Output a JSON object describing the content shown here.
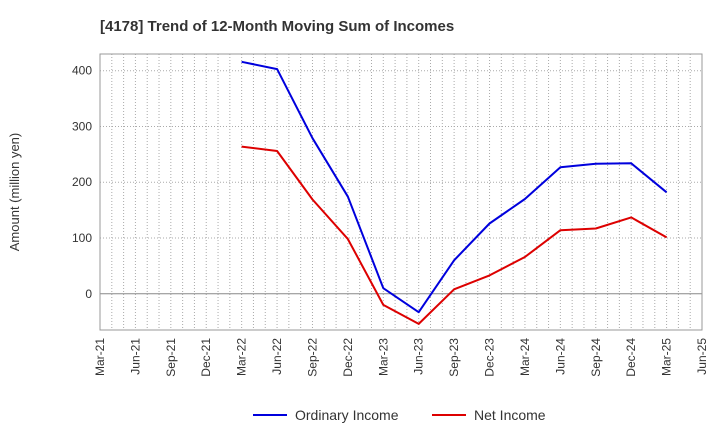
{
  "chart_data": {
    "type": "line",
    "title": "[4178]  Trend of 12-Month Moving Sum of Incomes",
    "xlabel": "",
    "ylabel": "Amount (million yen)",
    "ylim": [
      -65,
      430
    ],
    "yticks": [
      0,
      100,
      200,
      300,
      400
    ],
    "x_tick_labels": [
      "Mar-21",
      "Jun-21",
      "Sep-21",
      "Dec-21",
      "Mar-22",
      "Jun-22",
      "Sep-22",
      "Dec-22",
      "Mar-23",
      "Jun-23",
      "Sep-23",
      "Dec-23",
      "Mar-24",
      "Jun-24",
      "Sep-24",
      "Dec-24",
      "Mar-25",
      "Jun-25"
    ],
    "categories": [
      "Mar-22",
      "Jun-22",
      "Sep-22",
      "Dec-22",
      "Mar-23",
      "Jun-23",
      "Sep-23",
      "Dec-23",
      "Mar-24",
      "Jun-24",
      "Sep-24",
      "Dec-24",
      "Mar-25"
    ],
    "series": [
      {
        "name": "Ordinary Income",
        "color": "#0000dd",
        "values": [
          416,
          403,
          279,
          174,
          10,
          -33,
          60,
          126,
          170,
          227,
          233,
          234,
          182
        ]
      },
      {
        "name": "Net Income",
        "color": "#dd0000",
        "values": [
          264,
          256,
          169,
          98,
          -20,
          -54,
          8,
          33,
          66,
          114,
          117,
          137,
          101
        ]
      }
    ],
    "grid": true,
    "legend": "bottom-center"
  }
}
